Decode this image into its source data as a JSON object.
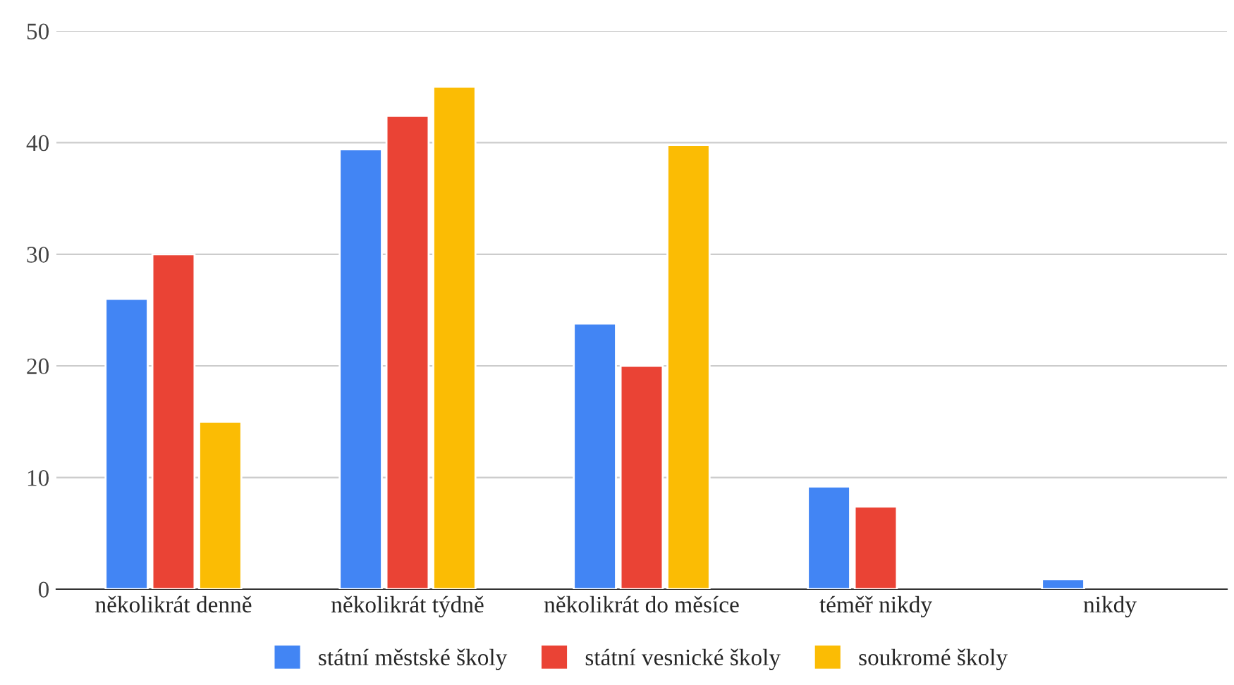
{
  "chart_data": {
    "type": "bar",
    "categories": [
      "několikrát denně",
      "několikrát týdně",
      "několikrát do měsíce",
      "téměř nikdy",
      "nikdy"
    ],
    "series": [
      {
        "name": "státní městské školy",
        "color": "#4285f4",
        "values": [
          26,
          39.4,
          23.8,
          9.2,
          0.9
        ]
      },
      {
        "name": "státní vesnické školy",
        "color": "#ea4335",
        "values": [
          30,
          42.4,
          20,
          7.4,
          null
        ]
      },
      {
        "name": "soukromé školy",
        "color": "#fbbc04",
        "values": [
          15,
          45,
          39.8,
          null,
          null
        ]
      }
    ],
    "ylim": [
      0,
      50
    ],
    "yticks": [
      0,
      10,
      20,
      30,
      40,
      50
    ],
    "grid": "y",
    "legend": "bottom"
  }
}
